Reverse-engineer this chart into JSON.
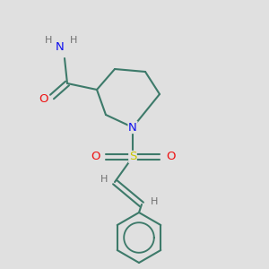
{
  "bg_color": "#e0e0e0",
  "bond_color": "#3d7a6a",
  "N_color": "#1010ee",
  "O_color": "#ee1010",
  "S_color": "#c8c800",
  "H_color": "#707070",
  "line_width": 1.5,
  "figsize": [
    3.0,
    3.0
  ],
  "dpi": 100,
  "xlim": [
    0,
    300
  ],
  "ylim": [
    0,
    300
  ]
}
